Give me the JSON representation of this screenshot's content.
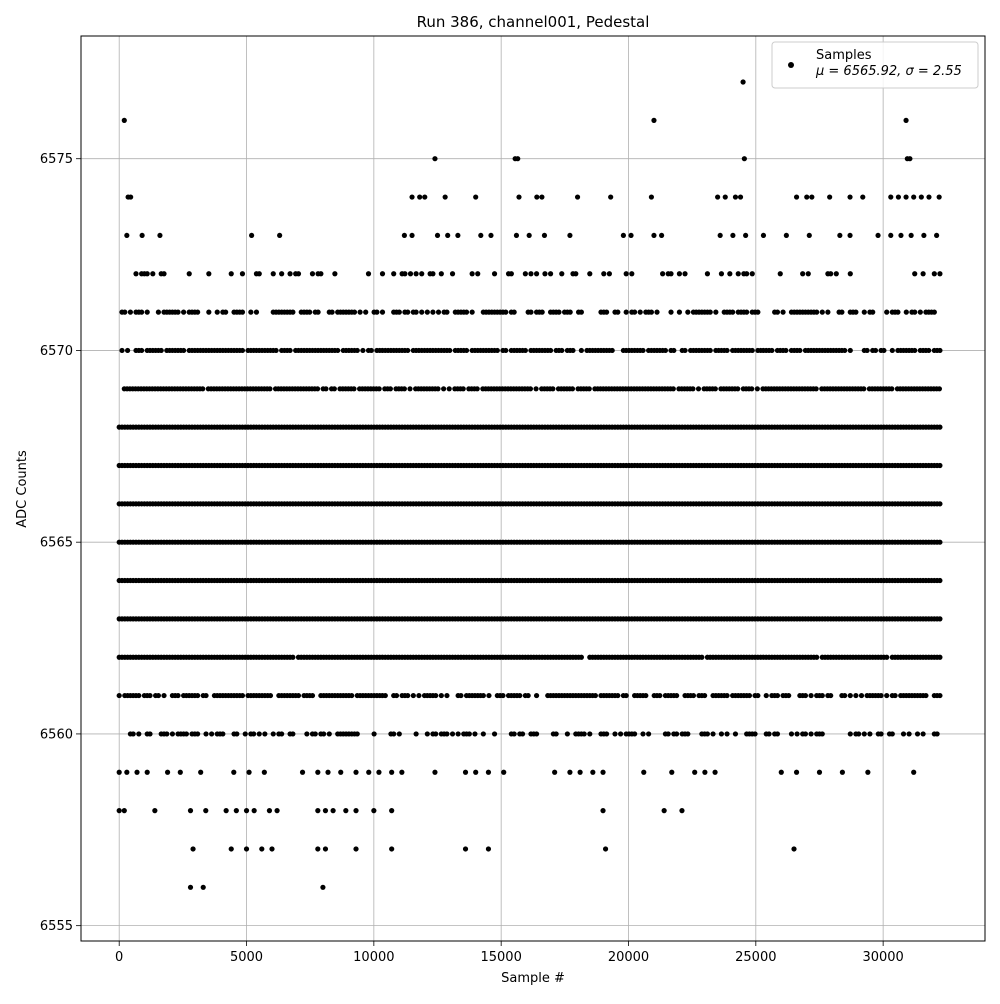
{
  "chart_data": {
    "type": "scatter",
    "title": "Run 386, channel001, Pedestal",
    "xlabel": "Sample #",
    "ylabel": "ADC Counts",
    "xlim": [
      -1500,
      34000
    ],
    "ylim": [
      6554.6,
      6578.2
    ],
    "xticks": [
      0,
      5000,
      10000,
      15000,
      20000,
      25000,
      30000
    ],
    "yticks": [
      6555,
      6560,
      6565,
      6570,
      6575
    ],
    "grid": true,
    "legend": {
      "placement": "top-right",
      "entries": [
        {
          "label": "Samples",
          "stats": "μ = 6565.92, σ = 2.55",
          "marker": "circle",
          "color": "#000000"
        }
      ]
    },
    "marker_color": "#000000",
    "series": [
      {
        "name": "Samples",
        "dense_levels": [
          {
            "y": 6572,
            "x_range": [
              0,
              32300
            ],
            "density": 0.25
          },
          {
            "y": 6571,
            "x_range": [
              0,
              32300
            ],
            "density": 0.55
          },
          {
            "y": 6570,
            "x_range": [
              0,
              32300
            ],
            "density": 0.85
          },
          {
            "y": 6569,
            "x_range": [
              200,
              32300
            ],
            "density": 0.9
          },
          {
            "y": 6568,
            "x_range": [
              0,
              32300
            ],
            "density": 1.0
          },
          {
            "y": 6567,
            "x_range": [
              0,
              32300
            ],
            "density": 1.0
          },
          {
            "y": 6566,
            "x_range": [
              0,
              32300
            ],
            "density": 1.0
          },
          {
            "y": 6565,
            "x_range": [
              0,
              32300
            ],
            "density": 1.0
          },
          {
            "y": 6564,
            "x_range": [
              0,
              32300
            ],
            "density": 1.0
          },
          {
            "y": 6563,
            "x_range": [
              0,
              32300
            ],
            "density": 1.0
          },
          {
            "y": 6562,
            "x_range": [
              0,
              32300
            ],
            "density": 0.95
          },
          {
            "y": 6561,
            "x_range": [
              0,
              32300
            ],
            "density": 0.75
          },
          {
            "y": 6560,
            "x_range": [
              0,
              32200
            ],
            "density": 0.45
          }
        ],
        "sparse_points": [
          {
            "x": 200,
            "y": 6576
          },
          {
            "x": 21000,
            "y": 6576
          },
          {
            "x": 24500,
            "y": 6577
          },
          {
            "x": 30900,
            "y": 6576
          },
          {
            "x": 12400,
            "y": 6575
          },
          {
            "x": 15550,
            "y": 6575
          },
          {
            "x": 15650,
            "y": 6575
          },
          {
            "x": 24550,
            "y": 6575
          },
          {
            "x": 30950,
            "y": 6575
          },
          {
            "x": 31050,
            "y": 6575
          },
          {
            "x": 350,
            "y": 6574
          },
          {
            "x": 450,
            "y": 6574
          },
          {
            "x": 11500,
            "y": 6574
          },
          {
            "x": 11800,
            "y": 6574
          },
          {
            "x": 12000,
            "y": 6574
          },
          {
            "x": 12800,
            "y": 6574
          },
          {
            "x": 14000,
            "y": 6574
          },
          {
            "x": 15700,
            "y": 6574
          },
          {
            "x": 16400,
            "y": 6574
          },
          {
            "x": 16600,
            "y": 6574
          },
          {
            "x": 18000,
            "y": 6574
          },
          {
            "x": 19300,
            "y": 6574
          },
          {
            "x": 20900,
            "y": 6574
          },
          {
            "x": 23500,
            "y": 6574
          },
          {
            "x": 23800,
            "y": 6574
          },
          {
            "x": 24200,
            "y": 6574
          },
          {
            "x": 24400,
            "y": 6574
          },
          {
            "x": 26600,
            "y": 6574
          },
          {
            "x": 27000,
            "y": 6574
          },
          {
            "x": 27200,
            "y": 6574
          },
          {
            "x": 27900,
            "y": 6574
          },
          {
            "x": 28700,
            "y": 6574
          },
          {
            "x": 29200,
            "y": 6574
          },
          {
            "x": 30300,
            "y": 6574
          },
          {
            "x": 30600,
            "y": 6574
          },
          {
            "x": 30900,
            "y": 6574
          },
          {
            "x": 31200,
            "y": 6574
          },
          {
            "x": 31500,
            "y": 6574
          },
          {
            "x": 31800,
            "y": 6574
          },
          {
            "x": 32200,
            "y": 6574
          },
          {
            "x": 300,
            "y": 6573
          },
          {
            "x": 900,
            "y": 6573
          },
          {
            "x": 1600,
            "y": 6573
          },
          {
            "x": 5200,
            "y": 6573
          },
          {
            "x": 6300,
            "y": 6573
          },
          {
            "x": 11200,
            "y": 6573
          },
          {
            "x": 11500,
            "y": 6573
          },
          {
            "x": 12500,
            "y": 6573
          },
          {
            "x": 12900,
            "y": 6573
          },
          {
            "x": 13300,
            "y": 6573
          },
          {
            "x": 14200,
            "y": 6573
          },
          {
            "x": 14600,
            "y": 6573
          },
          {
            "x": 15600,
            "y": 6573
          },
          {
            "x": 16100,
            "y": 6573
          },
          {
            "x": 16700,
            "y": 6573
          },
          {
            "x": 17700,
            "y": 6573
          },
          {
            "x": 19800,
            "y": 6573
          },
          {
            "x": 20100,
            "y": 6573
          },
          {
            "x": 21000,
            "y": 6573
          },
          {
            "x": 21300,
            "y": 6573
          },
          {
            "x": 23600,
            "y": 6573
          },
          {
            "x": 24100,
            "y": 6573
          },
          {
            "x": 24600,
            "y": 6573
          },
          {
            "x": 25300,
            "y": 6573
          },
          {
            "x": 26200,
            "y": 6573
          },
          {
            "x": 27100,
            "y": 6573
          },
          {
            "x": 28300,
            "y": 6573
          },
          {
            "x": 28700,
            "y": 6573
          },
          {
            "x": 29800,
            "y": 6573
          },
          {
            "x": 30300,
            "y": 6573
          },
          {
            "x": 30700,
            "y": 6573
          },
          {
            "x": 31100,
            "y": 6573
          },
          {
            "x": 31600,
            "y": 6573
          },
          {
            "x": 32100,
            "y": 6573
          },
          {
            "x": 0,
            "y": 6559
          },
          {
            "x": 300,
            "y": 6559
          },
          {
            "x": 700,
            "y": 6559
          },
          {
            "x": 1100,
            "y": 6559
          },
          {
            "x": 1900,
            "y": 6559
          },
          {
            "x": 2400,
            "y": 6559
          },
          {
            "x": 3200,
            "y": 6559
          },
          {
            "x": 4500,
            "y": 6559
          },
          {
            "x": 5100,
            "y": 6559
          },
          {
            "x": 5700,
            "y": 6559
          },
          {
            "x": 7200,
            "y": 6559
          },
          {
            "x": 7800,
            "y": 6559
          },
          {
            "x": 8200,
            "y": 6559
          },
          {
            "x": 8700,
            "y": 6559
          },
          {
            "x": 9300,
            "y": 6559
          },
          {
            "x": 9800,
            "y": 6559
          },
          {
            "x": 10200,
            "y": 6559
          },
          {
            "x": 10700,
            "y": 6559
          },
          {
            "x": 11100,
            "y": 6559
          },
          {
            "x": 12400,
            "y": 6559
          },
          {
            "x": 13600,
            "y": 6559
          },
          {
            "x": 14000,
            "y": 6559
          },
          {
            "x": 14500,
            "y": 6559
          },
          {
            "x": 15100,
            "y": 6559
          },
          {
            "x": 17100,
            "y": 6559
          },
          {
            "x": 17700,
            "y": 6559
          },
          {
            "x": 18100,
            "y": 6559
          },
          {
            "x": 18600,
            "y": 6559
          },
          {
            "x": 19000,
            "y": 6559
          },
          {
            "x": 20600,
            "y": 6559
          },
          {
            "x": 21700,
            "y": 6559
          },
          {
            "x": 22600,
            "y": 6559
          },
          {
            "x": 23000,
            "y": 6559
          },
          {
            "x": 23400,
            "y": 6559
          },
          {
            "x": 26000,
            "y": 6559
          },
          {
            "x": 26600,
            "y": 6559
          },
          {
            "x": 27500,
            "y": 6559
          },
          {
            "x": 28400,
            "y": 6559
          },
          {
            "x": 29400,
            "y": 6559
          },
          {
            "x": 31200,
            "y": 6559
          },
          {
            "x": 0,
            "y": 6558
          },
          {
            "x": 200,
            "y": 6558
          },
          {
            "x": 1400,
            "y": 6558
          },
          {
            "x": 2800,
            "y": 6558
          },
          {
            "x": 3400,
            "y": 6558
          },
          {
            "x": 4200,
            "y": 6558
          },
          {
            "x": 4600,
            "y": 6558
          },
          {
            "x": 5000,
            "y": 6558
          },
          {
            "x": 5300,
            "y": 6558
          },
          {
            "x": 5900,
            "y": 6558
          },
          {
            "x": 6200,
            "y": 6558
          },
          {
            "x": 7800,
            "y": 6558
          },
          {
            "x": 8100,
            "y": 6558
          },
          {
            "x": 8400,
            "y": 6558
          },
          {
            "x": 8900,
            "y": 6558
          },
          {
            "x": 9300,
            "y": 6558
          },
          {
            "x": 10000,
            "y": 6558
          },
          {
            "x": 10700,
            "y": 6558
          },
          {
            "x": 19000,
            "y": 6558
          },
          {
            "x": 21400,
            "y": 6558
          },
          {
            "x": 22100,
            "y": 6558
          },
          {
            "x": 2900,
            "y": 6557
          },
          {
            "x": 4400,
            "y": 6557
          },
          {
            "x": 5000,
            "y": 6557
          },
          {
            "x": 5600,
            "y": 6557
          },
          {
            "x": 6000,
            "y": 6557
          },
          {
            "x": 7800,
            "y": 6557
          },
          {
            "x": 8100,
            "y": 6557
          },
          {
            "x": 9300,
            "y": 6557
          },
          {
            "x": 10700,
            "y": 6557
          },
          {
            "x": 13600,
            "y": 6557
          },
          {
            "x": 14500,
            "y": 6557
          },
          {
            "x": 19100,
            "y": 6557
          },
          {
            "x": 26500,
            "y": 6557
          },
          {
            "x": 2800,
            "y": 6556
          },
          {
            "x": 3300,
            "y": 6556
          },
          {
            "x": 8000,
            "y": 6556
          }
        ]
      }
    ]
  }
}
